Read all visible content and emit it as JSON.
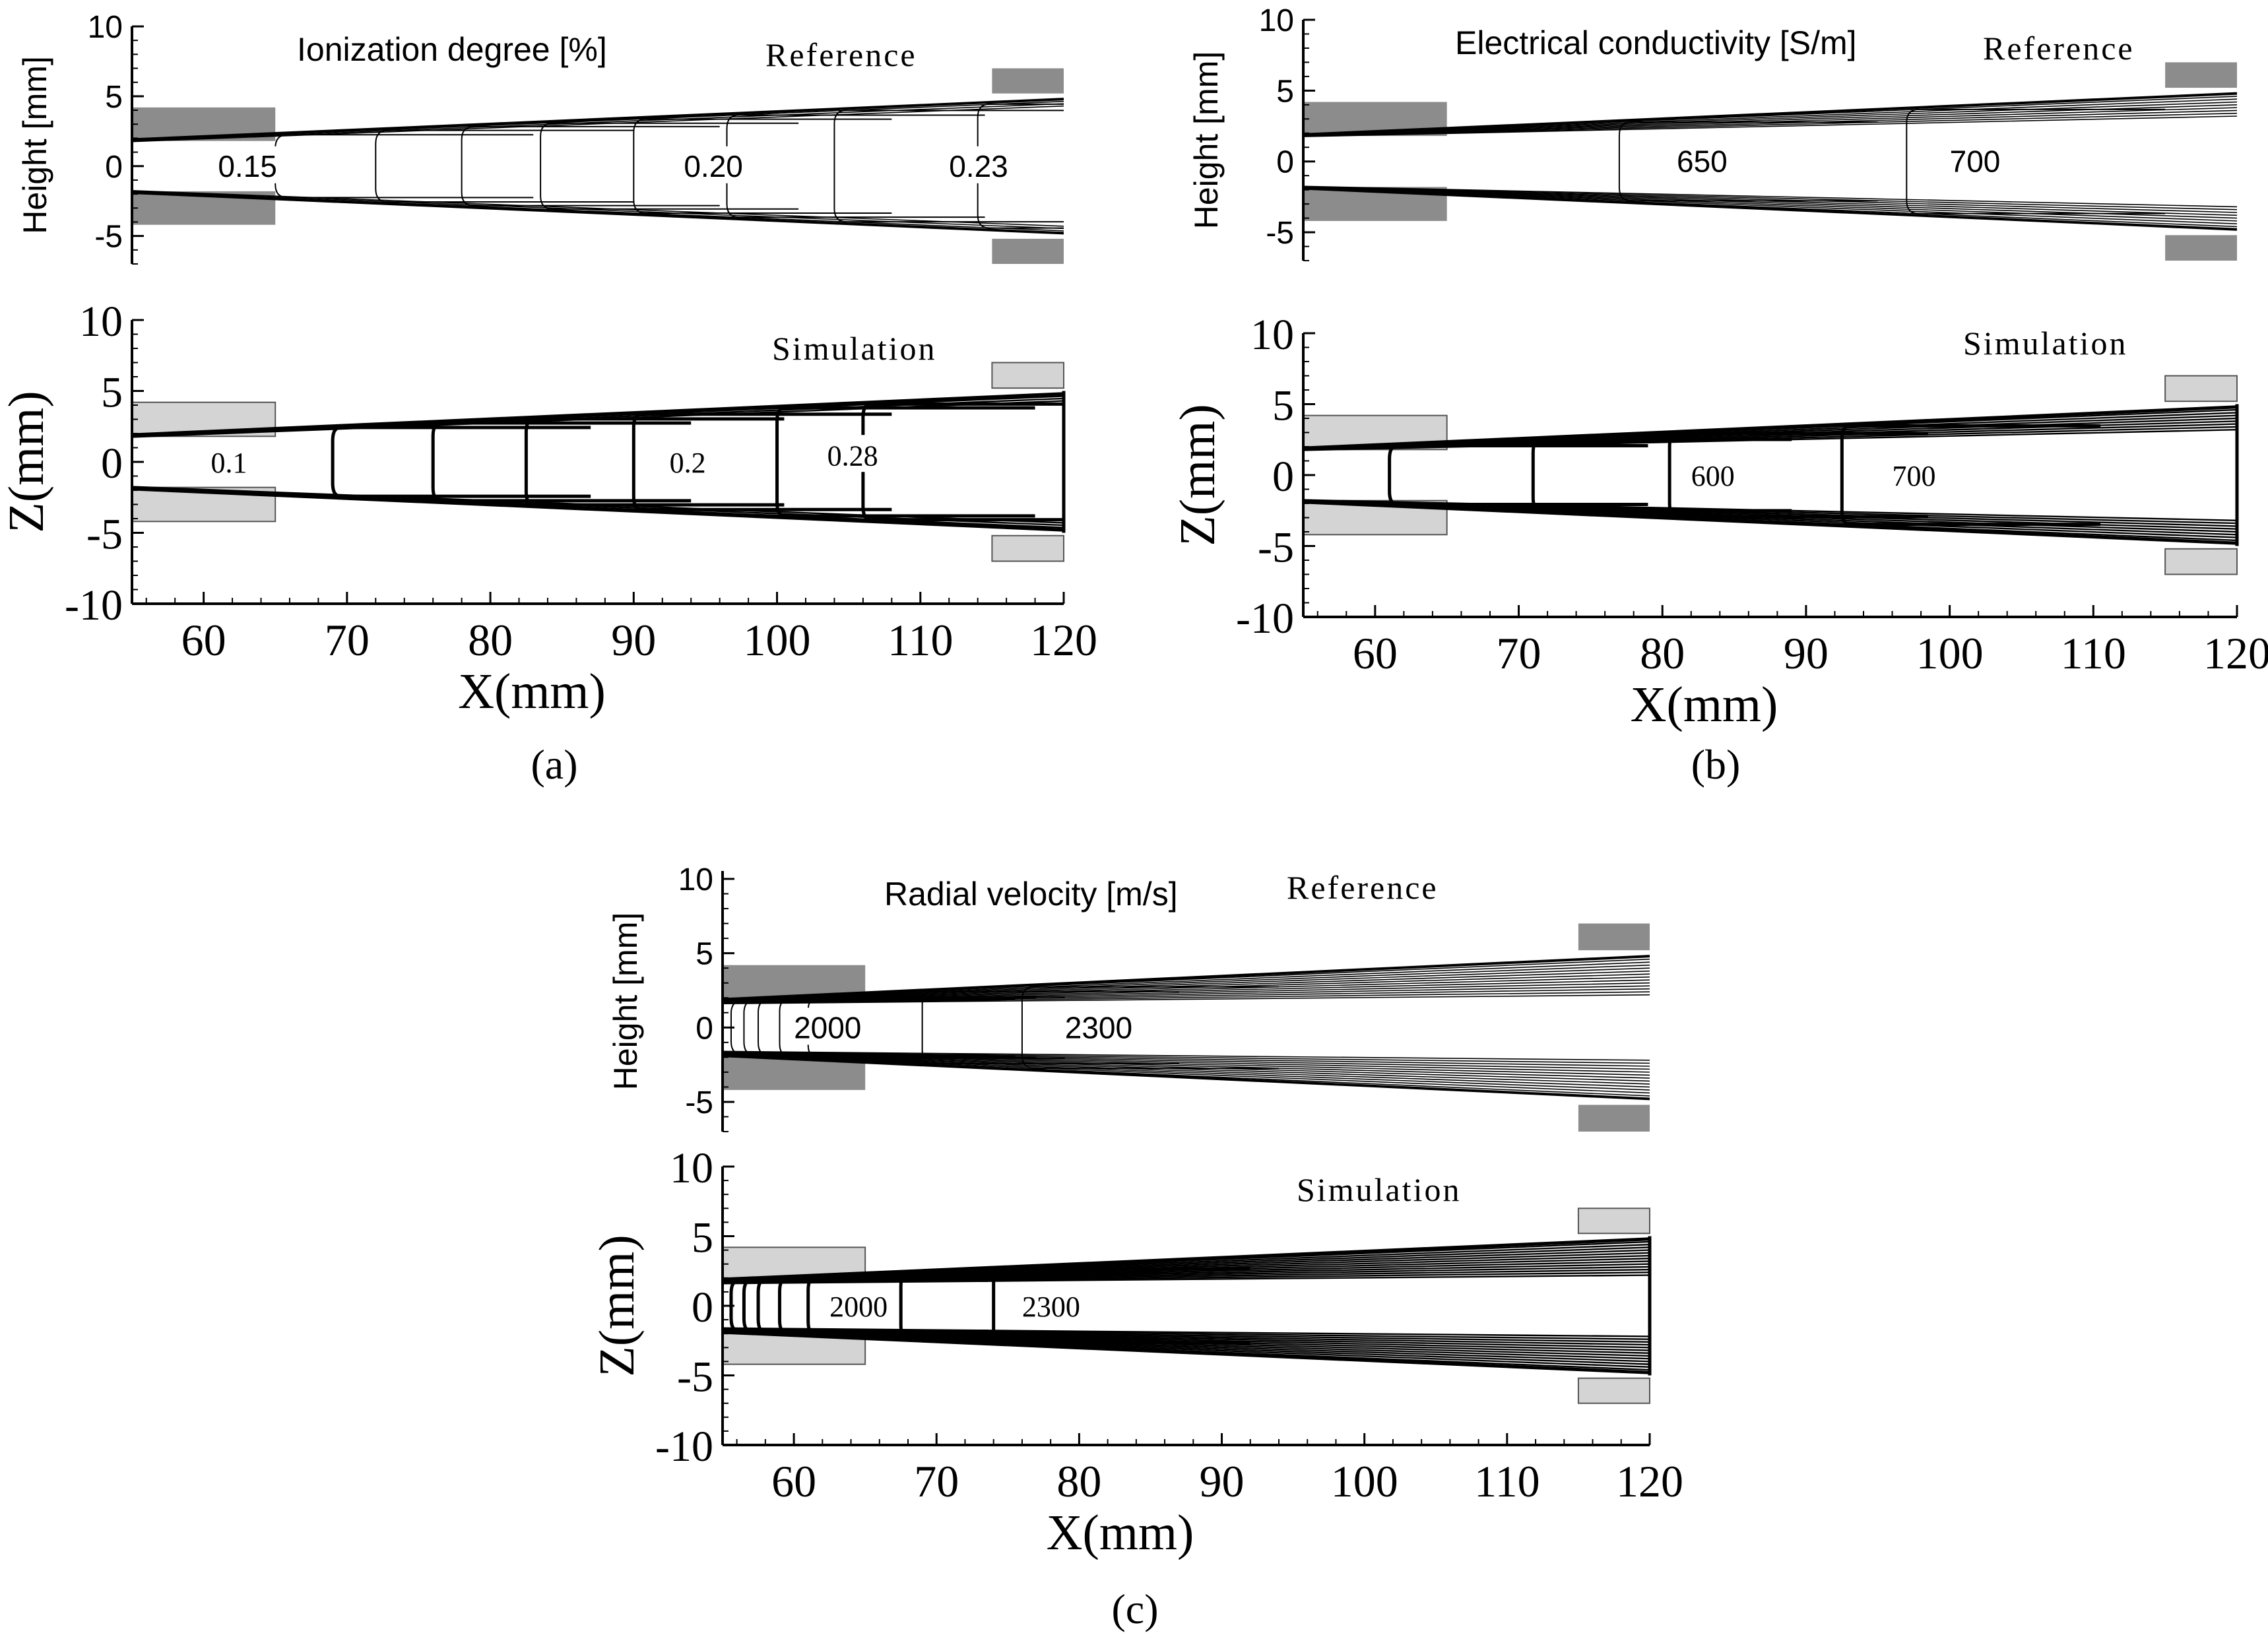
{
  "chart_data": [
    {
      "panel": "(a)",
      "type": "contour",
      "reference": {
        "title": "Ionization degree [%]",
        "tag": "Reference",
        "ylabel": "Height [mm]",
        "ylim": [
          -7,
          10
        ],
        "yticks": [
          "10",
          "5",
          "0",
          "-5"
        ],
        "contour_x": [
          65,
          72,
          78,
          83.5,
          90,
          96.5,
          104,
          114
        ],
        "contour_labels": [
          {
            "text": "0.15",
            "x": 61,
            "z": 0
          },
          {
            "text": "0.20",
            "x": 93.5,
            "z": 0
          },
          {
            "text": "0.23",
            "x": 112,
            "z": 0
          }
        ]
      },
      "simulation": {
        "tag": "Simulation",
        "xlabel": "X(mm)",
        "ylabel": "Z(mm)",
        "xlim": [
          55,
          120
        ],
        "ylim": [
          -10,
          10
        ],
        "xticks": [
          "60",
          "70",
          "80",
          "90",
          "100",
          "110",
          "120"
        ],
        "yticks": [
          "10",
          "5",
          "0",
          "-5",
          "-10"
        ],
        "contour_x": [
          69,
          76,
          82.5,
          90,
          100,
          106
        ],
        "contour_labels": [
          {
            "text": "0.1",
            "x": 60.5,
            "z": 0
          },
          {
            "text": "0.2",
            "x": 92.5,
            "z": 0
          },
          {
            "text": "0.28",
            "x": 103.5,
            "z": 0.5
          }
        ]
      }
    },
    {
      "panel": "(b)",
      "type": "contour",
      "reference": {
        "title": "Electrical conductivity [S/m]",
        "tag": "Reference",
        "ylabel": "Height [mm]",
        "ylim": [
          -7,
          10
        ],
        "yticks": [
          "10",
          "5",
          "0",
          "-5"
        ],
        "contour_x": [
          77,
          97
        ],
        "contour_labels": [
          {
            "text": "650",
            "x": 81,
            "z": 0
          },
          {
            "text": "700",
            "x": 100,
            "z": 0
          }
        ]
      },
      "simulation": {
        "tag": "Simulation",
        "xlabel": "X(mm)",
        "ylabel": "Z(mm)",
        "xlim": [
          55,
          120
        ],
        "ylim": [
          -10,
          10
        ],
        "xticks": [
          "60",
          "70",
          "80",
          "90",
          "100",
          "110",
          "120"
        ],
        "yticks": [
          "10",
          "5",
          "0",
          "-5",
          "-10"
        ],
        "contour_x": [
          61,
          71,
          80.5,
          92.5
        ],
        "contour_labels": [
          {
            "text": "600",
            "x": 82,
            "z": 0
          },
          {
            "text": "700",
            "x": 96,
            "z": 0
          }
        ]
      }
    },
    {
      "panel": "(c)",
      "type": "contour",
      "reference": {
        "title": "Radial velocity [m/s]",
        "tag": "Reference",
        "ylabel": "Height [mm]",
        "ylim": [
          -7,
          10
        ],
        "yticks": [
          "10",
          "5",
          "0",
          "-5"
        ],
        "contour_x": [
          55.6,
          56.5,
          57.5,
          59,
          61,
          69,
          76
        ],
        "contour_labels": [
          {
            "text": "2000",
            "x": 60,
            "z": 0
          },
          {
            "text": "2300",
            "x": 79,
            "z": 0
          }
        ]
      },
      "simulation": {
        "tag": "Simulation",
        "xlabel": "X(mm)",
        "ylabel": "Z(mm)",
        "xlim": [
          55,
          120
        ],
        "ylim": [
          -10,
          10
        ],
        "xticks": [
          "60",
          "70",
          "80",
          "90",
          "100",
          "110",
          "120"
        ],
        "yticks": [
          "10",
          "5",
          "0",
          "-5",
          "-10"
        ],
        "contour_x": [
          55.6,
          56.5,
          57.5,
          59,
          61,
          67.5,
          74
        ],
        "contour_labels": [
          {
            "text": "2000",
            "x": 62.5,
            "z": 0
          },
          {
            "text": "2300",
            "x": 76,
            "z": 0
          }
        ]
      }
    }
  ]
}
